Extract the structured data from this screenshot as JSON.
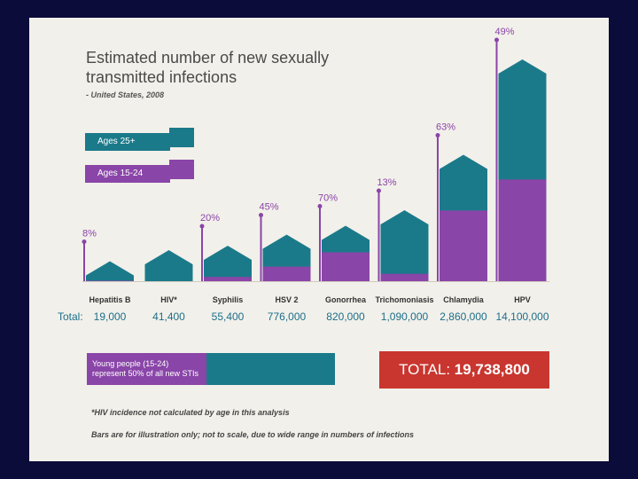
{
  "header": {
    "title": "Estimated number of new sexually transmitted infections",
    "subtitle": "- United States, 2008"
  },
  "legend": {
    "older": "Ages 25+",
    "young": "Ages 15-24",
    "older_color": "#1b7a8a",
    "young_color": "#8a45a8"
  },
  "chart_data": {
    "type": "bar",
    "title": "Estimated number of new sexually transmitted infections",
    "subtitle": "- United States, 2008",
    "total_label": "Total:",
    "categories": [
      "Hepatitis B",
      "HIV*",
      "Syphilis",
      "HSV 2",
      "Gonorrhea",
      "Trichomoniasis",
      "Chlamydia",
      "HPV"
    ],
    "totals": [
      "19,000",
      "41,400",
      "55,400",
      "776,000",
      "820,000",
      "1,090,000",
      "2,860,000",
      "14,100,000"
    ],
    "young_share_labels": [
      "8%",
      "",
      "20%",
      "45%",
      "70%",
      "13%",
      "63%",
      "49%"
    ],
    "young_share": [
      0.08,
      null,
      0.2,
      0.45,
      0.7,
      0.13,
      0.63,
      0.49
    ],
    "illustrative_heights": [
      0.09,
      0.14,
      0.16,
      0.21,
      0.25,
      0.32,
      0.57,
      1.0
    ],
    "series": [
      {
        "name": "Ages 25+",
        "color": "#1b7a8a"
      },
      {
        "name": "Ages 15-24",
        "color": "#8a45a8"
      }
    ]
  },
  "summary": {
    "young_people": "Young people (15-24) represent 50% of all new STIs",
    "total_prefix": "TOTAL: ",
    "total_value": "19,738,800"
  },
  "notes": {
    "hiv": "*HIV incidence not calculated by age in this analysis",
    "scale": "Bars are for illustration only; not to scale, due to wide range in numbers of infections"
  }
}
